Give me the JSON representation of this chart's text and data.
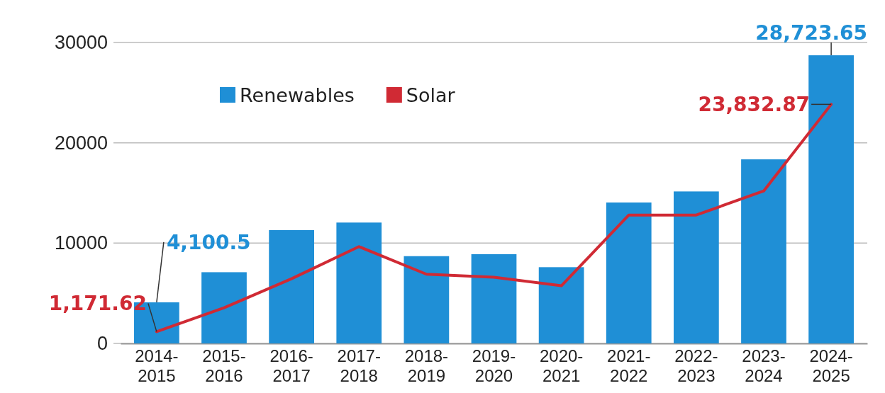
{
  "chart_data": {
    "type": "bar",
    "categories": [
      "2014-\n2015",
      "2015-\n2016",
      "2016-\n2017",
      "2017-\n2018",
      "2018-\n2019",
      "2019-\n2020",
      "2020-\n2021",
      "2021-\n2022",
      "2022-\n2023",
      "2023-\n2024",
      "2024-\n2025"
    ],
    "series": [
      {
        "name": "Renewables",
        "color": "#1f8fd6",
        "values": [
          4100.5,
          7100,
          11300,
          12050,
          8700,
          8900,
          7600,
          14050,
          15150,
          18350,
          28723.65
        ],
        "value_labels": [
          "4,100.5",
          null,
          null,
          null,
          null,
          null,
          null,
          null,
          null,
          null,
          "28,723.65"
        ]
      },
      {
        "name": "Solar",
        "type": "line",
        "color": "#d02a34",
        "values": [
          1171.62,
          3550,
          6450,
          9650,
          6900,
          6600,
          5750,
          12800,
          12800,
          15200,
          23832.87
        ],
        "value_labels": [
          "1,171.62",
          null,
          null,
          null,
          null,
          null,
          null,
          null,
          null,
          null,
          "23,832.87"
        ]
      }
    ],
    "ylim": [
      0,
      30000
    ],
    "yticks": [
      0,
      10000,
      20000,
      30000
    ],
    "grid": "y",
    "legend": "top left",
    "marker": "none"
  }
}
